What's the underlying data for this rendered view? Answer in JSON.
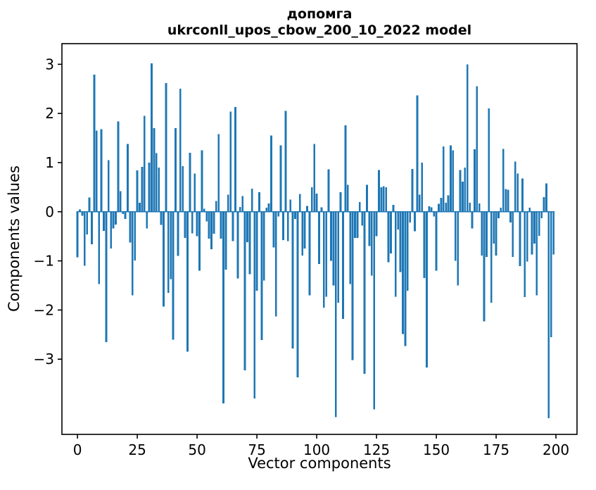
{
  "figure": {
    "title_line1": "допомга",
    "title_line2": "ukrconll_upos_cbow_200_10_2022 model",
    "xlabel": "Vector components",
    "ylabel": "Components values",
    "background": "#ffffff",
    "bar_color": "#1f77b4",
    "spine_color": "#000000"
  },
  "chart_data": {
    "type": "bar",
    "title": "допомга\nukrconll_upos_cbow_200_10_2022 model",
    "xlabel": "Vector components",
    "ylabel": "Components values",
    "legend": null,
    "grid": false,
    "x_ticks": [
      0,
      25,
      50,
      75,
      100,
      125,
      150,
      175,
      200
    ],
    "y_ticks": [
      3,
      2,
      1,
      0,
      -1,
      -2,
      -3
    ],
    "xlim": [
      -6.5,
      208.8
    ],
    "ylim": [
      -4.53,
      3.42
    ],
    "bar_width_units": 0.8,
    "n_bars": 200,
    "values": [
      -0.93,
      0.05,
      -0.08,
      -1.1,
      -0.46,
      0.29,
      -0.66,
      2.79,
      1.65,
      -1.47,
      1.68,
      -0.39,
      -2.65,
      1.05,
      -0.75,
      -0.34,
      -0.26,
      1.84,
      0.42,
      -0.05,
      -0.15,
      1.38,
      -0.63,
      -1.7,
      -0.99,
      0.84,
      0.18,
      0.91,
      1.95,
      -0.34,
      1.0,
      3.02,
      1.7,
      1.19,
      0.9,
      -0.27,
      -1.93,
      2.62,
      -1.65,
      -1.37,
      -2.6,
      1.7,
      -0.9,
      2.5,
      0.93,
      -0.53,
      -2.85,
      1.2,
      -0.44,
      0.78,
      -0.5,
      -1.2,
      1.25,
      0.06,
      -0.2,
      -0.55,
      -0.76,
      -0.45,
      0.22,
      1.58,
      -0.55,
      -3.9,
      -1.18,
      0.35,
      2.04,
      -0.6,
      2.13,
      -1.36,
      0.1,
      0.32,
      -3.23,
      -0.62,
      -1.27,
      0.47,
      -3.8,
      -1.61,
      0.4,
      -2.61,
      -1.4,
      0.08,
      0.17,
      1.55,
      -0.73,
      -2.13,
      -0.1,
      1.35,
      -0.58,
      2.05,
      -0.6,
      0.25,
      -2.78,
      -0.15,
      -3.37,
      0.36,
      -0.89,
      -0.75,
      0.12,
      -1.7,
      0.5,
      1.38,
      0.37,
      -1.06,
      0.09,
      -1.95,
      -1.73,
      0.86,
      -1.0,
      -1.5,
      -4.18,
      -1.85,
      0.4,
      -2.18,
      1.76,
      0.55,
      -1.47,
      -3.02,
      -0.53,
      -0.53,
      0.2,
      -0.28,
      -3.3,
      0.55,
      -0.7,
      -1.3,
      -4.02,
      -0.5,
      0.85,
      0.5,
      0.52,
      0.5,
      -1.03,
      -0.85,
      0.14,
      -1.73,
      -0.36,
      -1.23,
      -2.49,
      -2.73,
      -1.61,
      -0.22,
      0.87,
      -0.4,
      2.37,
      0.35,
      1.0,
      -1.35,
      -3.17,
      0.11,
      0.09,
      -0.1,
      -1.2,
      0.16,
      0.28,
      1.33,
      0.18,
      0.33,
      1.35,
      1.25,
      -1.0,
      -1.5,
      0.85,
      0.61,
      0.9,
      3.0,
      0.18,
      -0.34,
      1.27,
      2.55,
      0.17,
      -0.89,
      -2.23,
      -0.92,
      2.1,
      -1.85,
      -0.65,
      -0.89,
      -0.13,
      0.08,
      1.28,
      0.46,
      0.45,
      -0.22,
      -0.92,
      1.02,
      0.78,
      -1.11,
      0.68,
      -1.74,
      -1.01,
      0.08,
      -0.87,
      -0.65,
      -1.7,
      -0.49,
      -0.13,
      0.3,
      0.58,
      -4.2,
      -2.55,
      -0.87
    ]
  }
}
